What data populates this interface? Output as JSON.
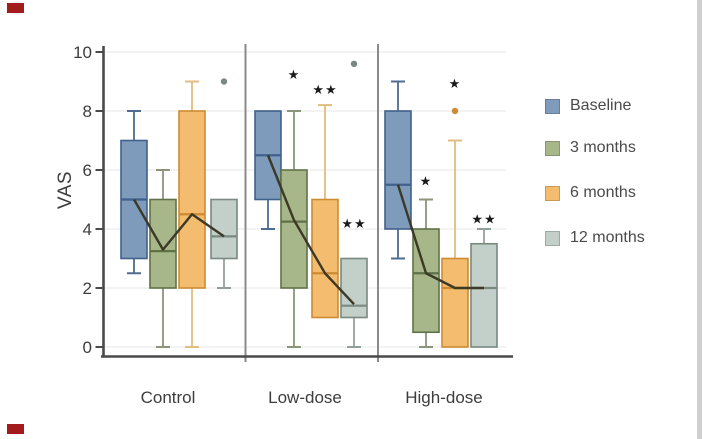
{
  "figure": {
    "background": "#ffffff",
    "edge_strip_color": "#d0d0d0",
    "corner_mark_color": "#a21c1c"
  },
  "colors": {
    "axis": "#4a4a4a",
    "grid": "#ececec",
    "separator": "#8a8a8a",
    "trend_line": "#3c3926",
    "text": "#3d3d3d",
    "sig_star": "#1a1a1a"
  },
  "chart_data": {
    "type": "boxplot",
    "title": "",
    "xlabel": "",
    "ylabel": "VAS",
    "ylim": [
      0,
      10
    ],
    "yticks": [
      0,
      2,
      4,
      6,
      8,
      10
    ],
    "grid": "horizontal light gray lines at each y tick",
    "legend_position": "right",
    "categories": [
      "Control",
      "Low-dose",
      "High-dose"
    ],
    "series": [
      {
        "name": "Baseline",
        "fill": "#7e9bbb",
        "stroke": "#40618c",
        "whisker": "#4f6b8f"
      },
      {
        "name": "3 months",
        "fill": "#a7b78a",
        "stroke": "#5f7247",
        "whisker": "#8b9579"
      },
      {
        "name": "6 months",
        "fill": "#f4bc6e",
        "stroke": "#cd8b33",
        "whisker": "#e2bd7f"
      },
      {
        "name": "12 months",
        "fill": "#c3cfc9",
        "stroke": "#79897f",
        "whisker": "#93a099"
      }
    ],
    "groups": [
      {
        "label": "Control",
        "boxes": [
          {
            "series": "Baseline",
            "min": 2.5,
            "q1": 3,
            "median": 5.0,
            "q3": 7,
            "max": 8,
            "mean": 5.0,
            "outliers": [],
            "sig": "",
            "sig_value": null
          },
          {
            "series": "3 months",
            "min": 0,
            "q1": 2,
            "median": 3.25,
            "q3": 5,
            "max": 6,
            "mean": 3.3,
            "outliers": [],
            "sig": "",
            "sig_value": null
          },
          {
            "series": "6 months",
            "min": 0,
            "q1": 2,
            "median": 4.5,
            "q3": 8,
            "max": 9,
            "mean": 4.5,
            "outliers": [],
            "sig": "",
            "sig_value": null
          },
          {
            "series": "12 months",
            "min": 2,
            "q1": 3,
            "median": 3.75,
            "q3": 5,
            "max": 5,
            "mean": 3.75,
            "outliers": [
              9
            ],
            "sig": "",
            "sig_value": null
          }
        ]
      },
      {
        "label": "Low-dose",
        "boxes": [
          {
            "series": "Baseline",
            "min": 4,
            "q1": 5,
            "median": 6.5,
            "q3": 8,
            "max": 8,
            "mean": 6.5,
            "outliers": [],
            "sig": "",
            "sig_value": null
          },
          {
            "series": "3 months",
            "min": 0,
            "q1": 2,
            "median": 4.25,
            "q3": 6,
            "max": 8,
            "mean": 4.3,
            "outliers": [],
            "sig": "*",
            "sig_value": 9.25
          },
          {
            "series": "6 months",
            "min": 1,
            "q1": 1,
            "median": 2.5,
            "q3": 5,
            "max": 8.2,
            "mean": 2.5,
            "outliers": [],
            "sig": "**",
            "sig_value": 8.75
          },
          {
            "series": "12 months",
            "min": 0,
            "q1": 1,
            "median": 1.4,
            "q3": 3,
            "max": 3,
            "mean": 1.45,
            "outliers": [
              9.6
            ],
            "sig": "**",
            "sig_value": 4.2
          }
        ]
      },
      {
        "label": "High-dose",
        "boxes": [
          {
            "series": "Baseline",
            "min": 3,
            "q1": 4,
            "median": 5.5,
            "q3": 8,
            "max": 9,
            "mean": 5.5,
            "outliers": [],
            "sig": "",
            "sig_value": null
          },
          {
            "series": "3 months",
            "min": 0,
            "q1": 0.5,
            "median": 2.5,
            "q3": 4,
            "max": 5,
            "mean": 2.5,
            "outliers": [],
            "sig": "*",
            "sig_value": 5.65
          },
          {
            "series": "6 months",
            "min": 0,
            "q1": 0,
            "median": 2.0,
            "q3": 3,
            "max": 7,
            "mean": 2.0,
            "outliers": [
              8
            ],
            "sig": "*",
            "sig_value": 8.95
          },
          {
            "series": "12 months",
            "min": 0,
            "q1": 0,
            "median": 2.0,
            "q3": 3.5,
            "max": 4,
            "mean": 2.0,
            "outliers": [],
            "sig": "**",
            "sig_value": 4.35
          }
        ]
      }
    ],
    "legend": {
      "items": [
        "Baseline",
        "3 months",
        "6 months",
        "12 months"
      ]
    }
  }
}
